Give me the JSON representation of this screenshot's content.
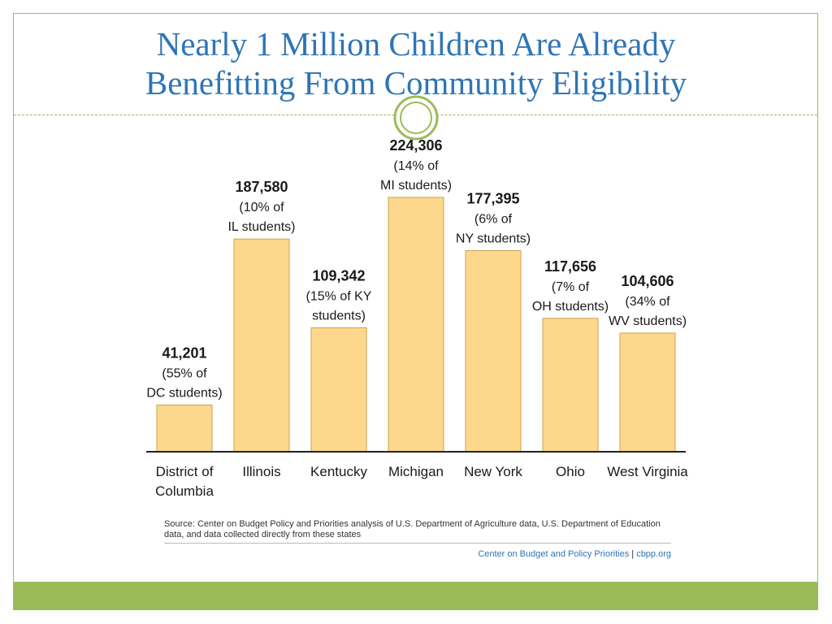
{
  "slide": {
    "title_line1": "Nearly 1 Million Children Are Already",
    "title_line2": "Benefitting From Community Eligibility",
    "source": "Source: Center on Budget Policy and Priorities analysis of U.S. Department of Agriculture data, U.S. Department of Education data, and data collected directly from these states",
    "credit_org": "Center on Budget and Policy Priorities",
    "credit_sep": "|",
    "credit_site": "cbpp.org"
  },
  "colors": {
    "bar_fill": "#fdd88c",
    "bar_stroke": "#c9a24a",
    "title": "#2e75b6",
    "accent_green": "#9bbb59",
    "axis": "#222222"
  },
  "chart_data": {
    "type": "bar",
    "title": "",
    "xlabel": "",
    "ylabel": "",
    "ylim": [
      0,
      240000
    ],
    "grid": false,
    "categories": [
      [
        "District of",
        "Columbia"
      ],
      [
        "Illinois"
      ],
      [
        "Kentucky"
      ],
      [
        "Michigan"
      ],
      [
        "New York"
      ],
      [
        "Ohio"
      ],
      [
        "West Virginia"
      ]
    ],
    "values": [
      41201,
      187580,
      109342,
      224306,
      177395,
      117656,
      104606
    ],
    "data_labels": [
      [
        "41,201",
        "(55% of",
        "DC students)"
      ],
      [
        "187,580",
        "(10% of",
        "IL students)"
      ],
      [
        "109,342",
        "(15% of KY",
        "students)"
      ],
      [
        "224,306",
        "(14% of",
        "MI students)"
      ],
      [
        "177,395",
        "(6% of",
        "NY students)"
      ],
      [
        "117,656",
        "(7% of",
        "OH students)"
      ],
      [
        "104,606",
        "(34% of",
        "WV students)"
      ]
    ]
  }
}
